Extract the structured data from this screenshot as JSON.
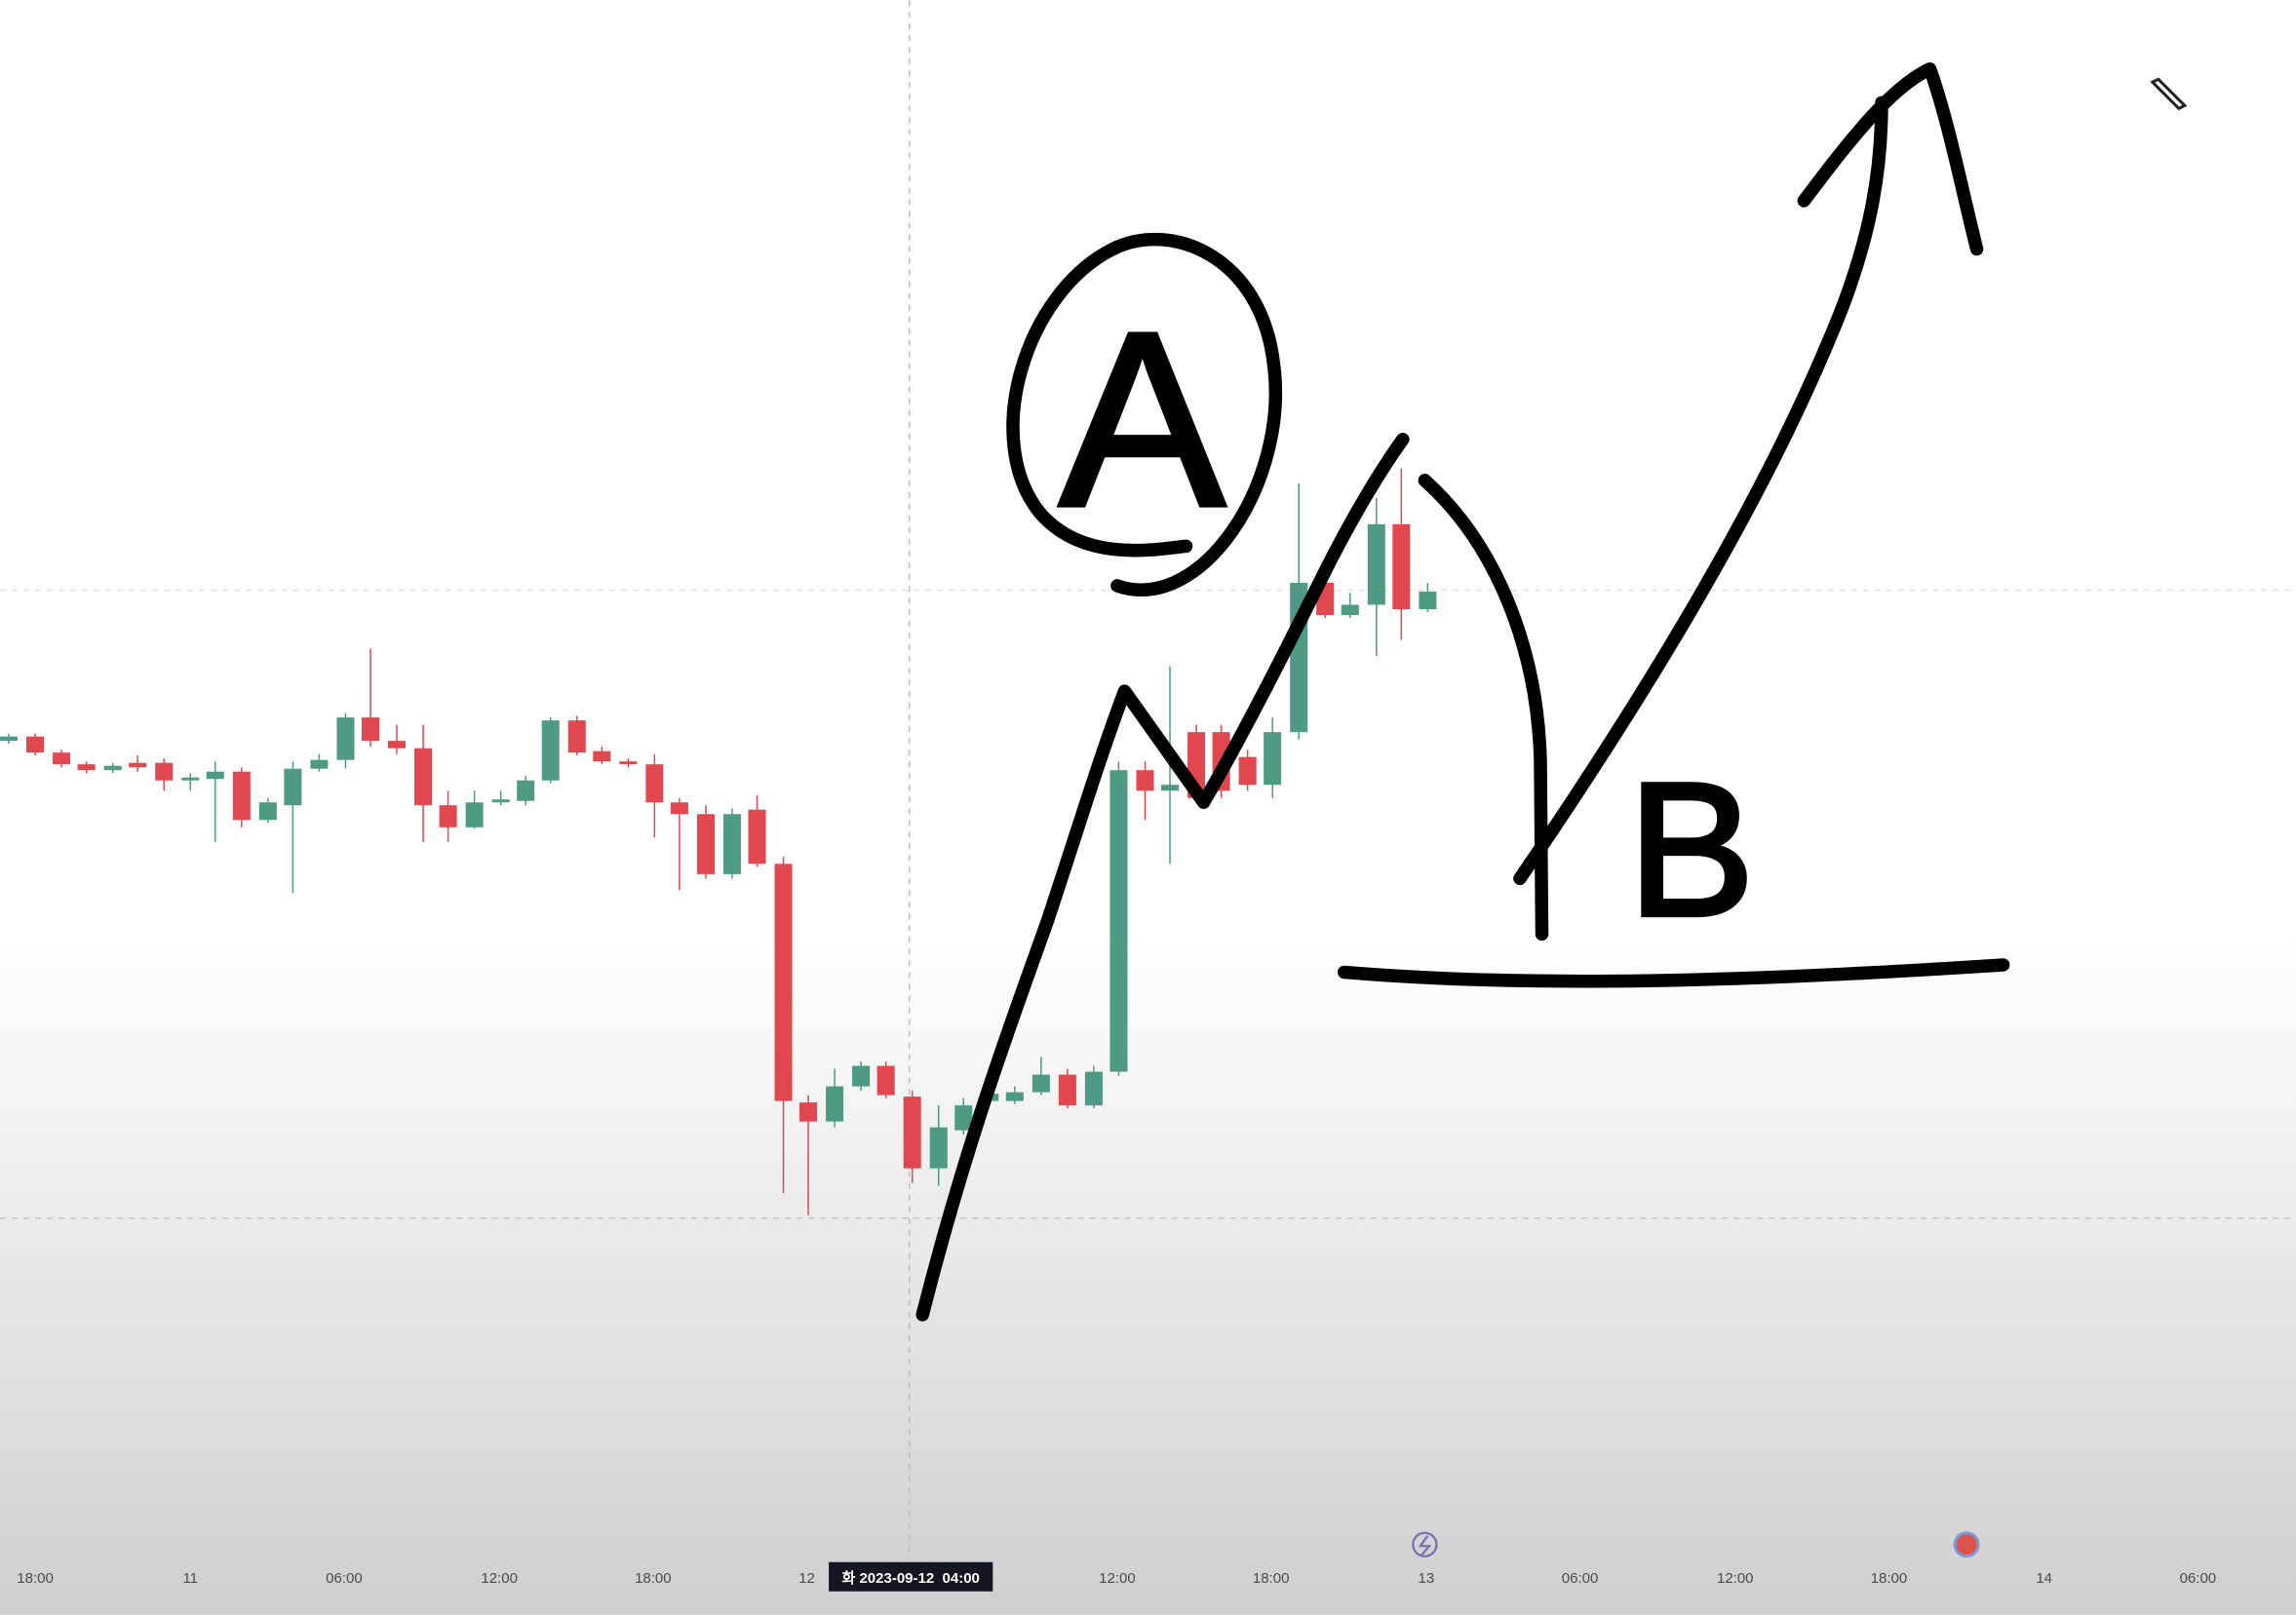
{
  "time_axis": {
    "labels": [
      "18:00",
      "11",
      "06:00",
      "12:00",
      "18:00",
      "12",
      "12:00",
      "18:00",
      "13",
      "06:00",
      "12:00",
      "18:00",
      "14",
      "06:00"
    ]
  },
  "crosshair_label": "화 2023-09-12  04:00",
  "annotations": [
    "A",
    "B"
  ]
}
